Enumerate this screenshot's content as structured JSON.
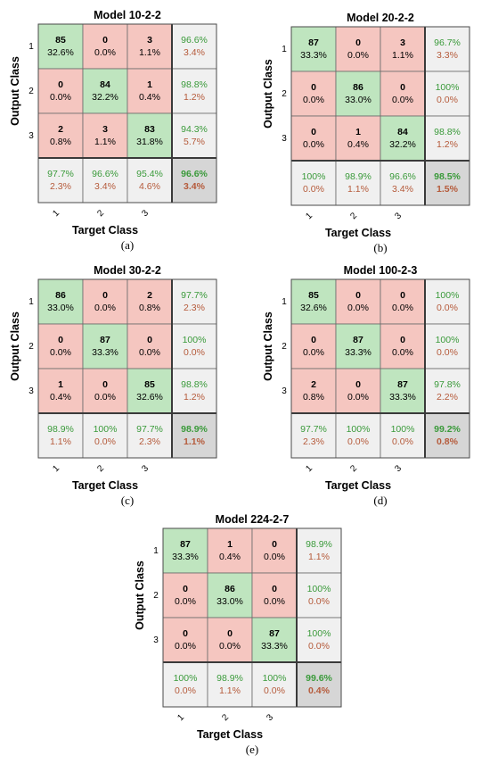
{
  "colors": {
    "correct_cell": "#bfe5bf",
    "wrong_cell": "#f5c6c0",
    "summary_cell": "#f0f0f0",
    "overall_cell": "#d6d6d6",
    "correct_text": "#3a9a3a",
    "error_text": "#b55a3a",
    "grid_line": "#6a6a6a"
  },
  "chart_data": [
    {
      "type": "table",
      "title": "Model 10-2-2",
      "xlabel": "Target Class",
      "ylabel": "Output Class",
      "tick_labels": [
        "1",
        "2",
        "3"
      ],
      "caption": "(a)",
      "cells": [
        [
          {
            "count": "85",
            "pct": "32.6%"
          },
          {
            "count": "0",
            "pct": "0.0%"
          },
          {
            "count": "3",
            "pct": "1.1%"
          }
        ],
        [
          {
            "count": "0",
            "pct": "0.0%"
          },
          {
            "count": "84",
            "pct": "32.2%"
          },
          {
            "count": "1",
            "pct": "0.4%"
          }
        ],
        [
          {
            "count": "2",
            "pct": "0.8%"
          },
          {
            "count": "3",
            "pct": "1.1%"
          },
          {
            "count": "83",
            "pct": "31.8%"
          }
        ]
      ],
      "row_summary": [
        {
          "correct": "96.6%",
          "error": "3.4%"
        },
        {
          "correct": "98.8%",
          "error": "1.2%"
        },
        {
          "correct": "94.3%",
          "error": "5.7%"
        }
      ],
      "col_summary": [
        {
          "correct": "97.7%",
          "error": "2.3%"
        },
        {
          "correct": "96.6%",
          "error": "3.4%"
        },
        {
          "correct": "95.4%",
          "error": "4.6%"
        }
      ],
      "overall": {
        "correct": "96.6%",
        "error": "3.4%"
      }
    },
    {
      "type": "table",
      "title": "Model 20-2-2",
      "xlabel": "Target Class",
      "ylabel": "Output Class",
      "tick_labels": [
        "1",
        "2",
        "3"
      ],
      "caption": "(b)",
      "cells": [
        [
          {
            "count": "87",
            "pct": "33.3%"
          },
          {
            "count": "0",
            "pct": "0.0%"
          },
          {
            "count": "3",
            "pct": "1.1%"
          }
        ],
        [
          {
            "count": "0",
            "pct": "0.0%"
          },
          {
            "count": "86",
            "pct": "33.0%"
          },
          {
            "count": "0",
            "pct": "0.0%"
          }
        ],
        [
          {
            "count": "0",
            "pct": "0.0%"
          },
          {
            "count": "1",
            "pct": "0.4%"
          },
          {
            "count": "84",
            "pct": "32.2%"
          }
        ]
      ],
      "row_summary": [
        {
          "correct": "96.7%",
          "error": "3.3%"
        },
        {
          "correct": "100%",
          "error": "0.0%"
        },
        {
          "correct": "98.8%",
          "error": "1.2%"
        }
      ],
      "col_summary": [
        {
          "correct": "100%",
          "error": "0.0%"
        },
        {
          "correct": "98.9%",
          "error": "1.1%"
        },
        {
          "correct": "96.6%",
          "error": "3.4%"
        }
      ],
      "overall": {
        "correct": "98.5%",
        "error": "1.5%"
      }
    },
    {
      "type": "table",
      "title": "Model 30-2-2",
      "xlabel": "Target Class",
      "ylabel": "Output Class",
      "tick_labels": [
        "1",
        "2",
        "3"
      ],
      "caption": "(c)",
      "cells": [
        [
          {
            "count": "86",
            "pct": "33.0%"
          },
          {
            "count": "0",
            "pct": "0.0%"
          },
          {
            "count": "2",
            "pct": "0.8%"
          }
        ],
        [
          {
            "count": "0",
            "pct": "0.0%"
          },
          {
            "count": "87",
            "pct": "33.3%"
          },
          {
            "count": "0",
            "pct": "0.0%"
          }
        ],
        [
          {
            "count": "1",
            "pct": "0.4%"
          },
          {
            "count": "0",
            "pct": "0.0%"
          },
          {
            "count": "85",
            "pct": "32.6%"
          }
        ]
      ],
      "row_summary": [
        {
          "correct": "97.7%",
          "error": "2.3%"
        },
        {
          "correct": "100%",
          "error": "0.0%"
        },
        {
          "correct": "98.8%",
          "error": "1.2%"
        }
      ],
      "col_summary": [
        {
          "correct": "98.9%",
          "error": "1.1%"
        },
        {
          "correct": "100%",
          "error": "0.0%"
        },
        {
          "correct": "97.7%",
          "error": "2.3%"
        }
      ],
      "overall": {
        "correct": "98.9%",
        "error": "1.1%"
      }
    },
    {
      "type": "table",
      "title": "Model 100-2-3",
      "xlabel": "Target Class",
      "ylabel": "Output Class",
      "tick_labels": [
        "1",
        "2",
        "3"
      ],
      "caption": "(d)",
      "cells": [
        [
          {
            "count": "85",
            "pct": "32.6%"
          },
          {
            "count": "0",
            "pct": "0.0%"
          },
          {
            "count": "0",
            "pct": "0.0%"
          }
        ],
        [
          {
            "count": "0",
            "pct": "0.0%"
          },
          {
            "count": "87",
            "pct": "33.3%"
          },
          {
            "count": "0",
            "pct": "0.0%"
          }
        ],
        [
          {
            "count": "2",
            "pct": "0.8%"
          },
          {
            "count": "0",
            "pct": "0.0%"
          },
          {
            "count": "87",
            "pct": "33.3%"
          }
        ]
      ],
      "row_summary": [
        {
          "correct": "100%",
          "error": "0.0%"
        },
        {
          "correct": "100%",
          "error": "0.0%"
        },
        {
          "correct": "97.8%",
          "error": "2.2%"
        }
      ],
      "col_summary": [
        {
          "correct": "97.7%",
          "error": "2.3%"
        },
        {
          "correct": "100%",
          "error": "0.0%"
        },
        {
          "correct": "100%",
          "error": "0.0%"
        }
      ],
      "overall": {
        "correct": "99.2%",
        "error": "0.8%"
      }
    },
    {
      "type": "table",
      "title": "Model 224-2-7",
      "xlabel": "Target Class",
      "ylabel": "Output Class",
      "tick_labels": [
        "1",
        "2",
        "3"
      ],
      "caption": "(e)",
      "cells": [
        [
          {
            "count": "87",
            "pct": "33.3%"
          },
          {
            "count": "1",
            "pct": "0.4%"
          },
          {
            "count": "0",
            "pct": "0.0%"
          }
        ],
        [
          {
            "count": "0",
            "pct": "0.0%"
          },
          {
            "count": "86",
            "pct": "33.0%"
          },
          {
            "count": "0",
            "pct": "0.0%"
          }
        ],
        [
          {
            "count": "0",
            "pct": "0.0%"
          },
          {
            "count": "0",
            "pct": "0.0%"
          },
          {
            "count": "87",
            "pct": "33.3%"
          }
        ]
      ],
      "row_summary": [
        {
          "correct": "98.9%",
          "error": "1.1%"
        },
        {
          "correct": "100%",
          "error": "0.0%"
        },
        {
          "correct": "100%",
          "error": "0.0%"
        }
      ],
      "col_summary": [
        {
          "correct": "100%",
          "error": "0.0%"
        },
        {
          "correct": "98.9%",
          "error": "1.1%"
        },
        {
          "correct": "100%",
          "error": "0.0%"
        }
      ],
      "overall": {
        "correct": "99.6%",
        "error": "0.4%"
      }
    }
  ]
}
